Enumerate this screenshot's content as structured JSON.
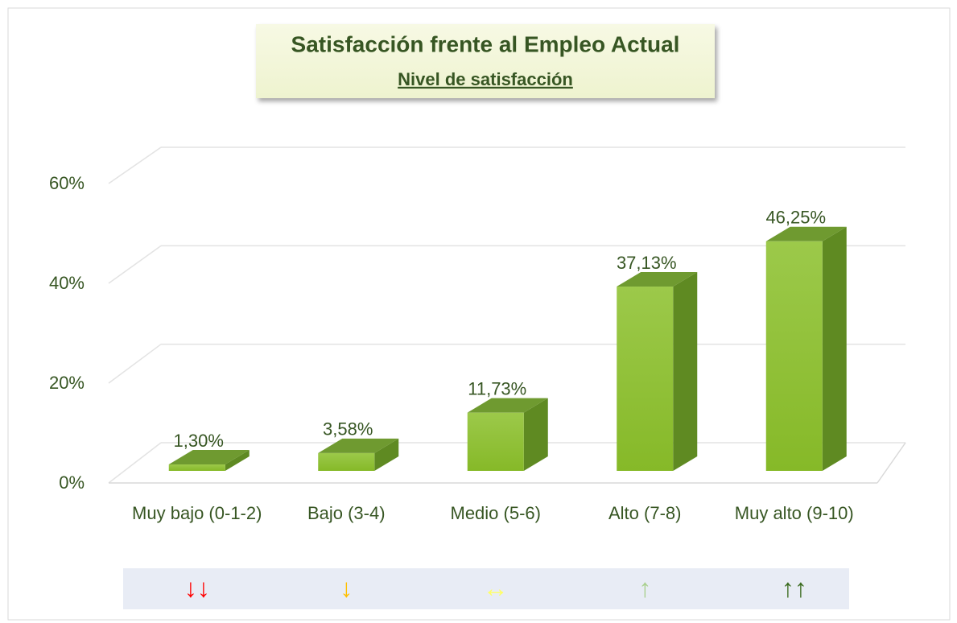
{
  "chart_data": {
    "type": "bar3d",
    "title": "Satisfacción frente al Empleo Actual",
    "subtitle": "Nivel de satisfacción",
    "categories": [
      "Muy bajo (0-1-2)",
      "Bajo (3-4)",
      "Medio (5-6)",
      "Alto (7-8)",
      "Muy alto (9-10)"
    ],
    "values": [
      1.3,
      3.58,
      11.73,
      37.13,
      46.25
    ],
    "value_labels": [
      "1,30%",
      "3,58%",
      "11,73%",
      "37,13%",
      "46,25%"
    ],
    "color": "#8cbf2f",
    "ylim": [
      0,
      60
    ],
    "yticks": [
      {
        "value": 0,
        "label": "0%"
      },
      {
        "value": 20,
        "label": "20%"
      },
      {
        "value": 40,
        "label": "40%"
      },
      {
        "value": 60,
        "label": "60%"
      }
    ],
    "grid": true,
    "indicators": [
      {
        "symbol": "↓↓",
        "color": "#ff0000"
      },
      {
        "symbol": "↓",
        "color": "#ffc000"
      },
      {
        "symbol": "↔",
        "color": "#ffff66"
      },
      {
        "symbol": "↑",
        "color": "#a9d08e"
      },
      {
        "symbol": "↑↑",
        "color": "#3a6b1e"
      }
    ]
  }
}
